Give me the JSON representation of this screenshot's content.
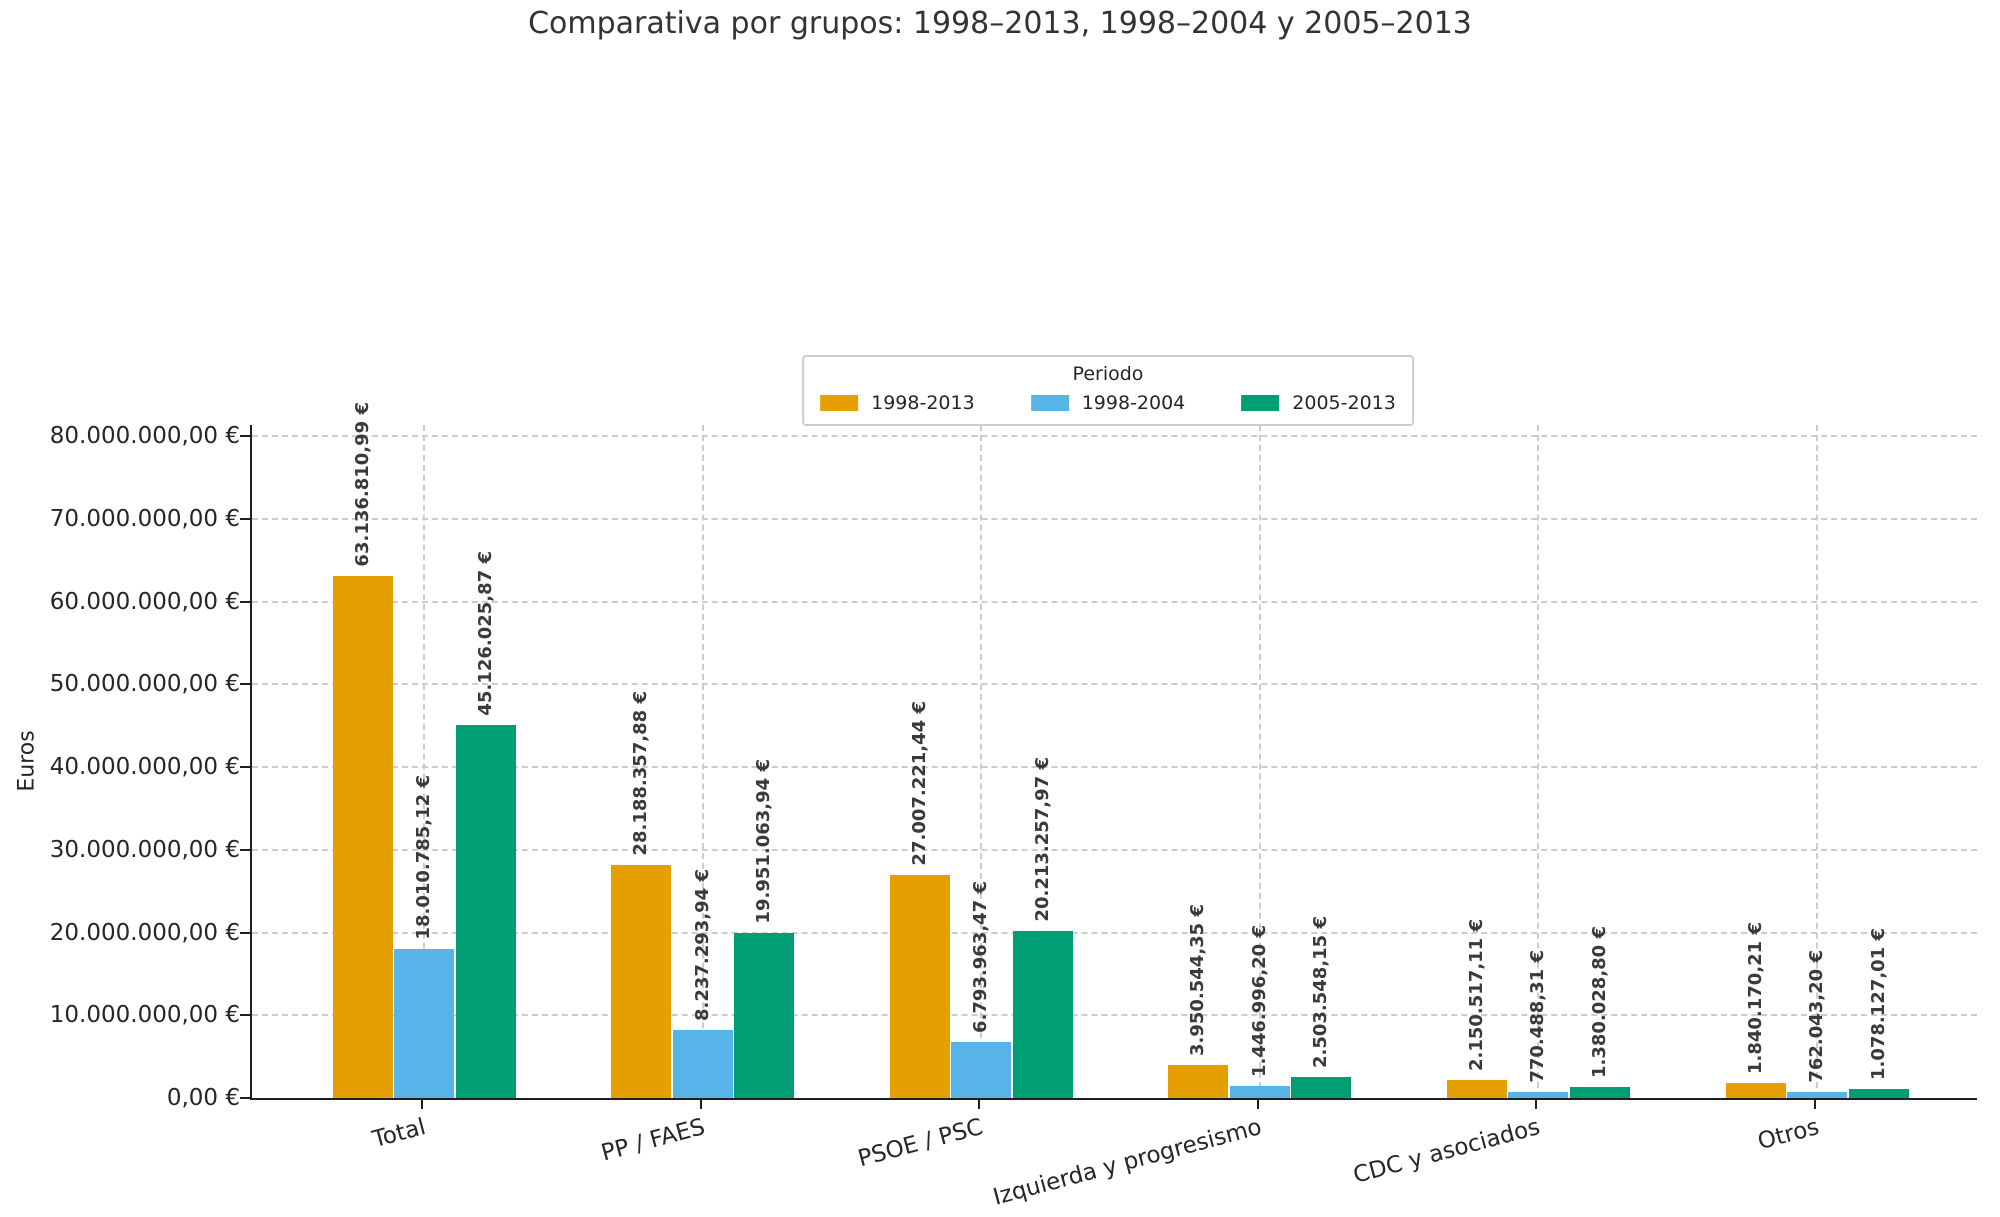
{
  "title": "Comparativa por grupos: 1998–2013, 1998–2004 y 2005–2013",
  "chart_data": {
    "type": "bar",
    "title": "Comparativa por grupos: 1998–2013, 1998–2004 y 2005–2013",
    "xlabel": "",
    "ylabel": "Euros",
    "ylim": [
      0,
      80000000
    ],
    "ytick_step": 10000000,
    "ytick_labels": [
      "0,00 €",
      "10.000.000,00 €",
      "20.000.000,00 €",
      "30.000.000,00 €",
      "40.000.000,00 €",
      "50.000.000,00 €",
      "60.000.000,00 €",
      "70.000.000,00 €",
      "80.000.000,00 €"
    ],
    "grid": true,
    "legend": {
      "title": "Periodo",
      "position": "upper center"
    },
    "categories": [
      "Total",
      "PP / FAES",
      "PSOE / PSC",
      "Izquierda y progresismo",
      "CDC y asociados",
      "Otros"
    ],
    "series": [
      {
        "name": "1998-2013",
        "color": "#E69F00",
        "values": [
          63136810.99,
          28188357.88,
          27007221.44,
          3950544.35,
          2150517.11,
          1840170.21
        ],
        "labels": [
          "63.136.810,99 €",
          "28.188.357,88 €",
          "27.007.221,44 €",
          "3.950.544,35 €",
          "2.150.517,11 €",
          "1.840.170,21 €"
        ]
      },
      {
        "name": "1998-2004",
        "color": "#56B4E9",
        "values": [
          18010785.12,
          8237293.94,
          6793963.47,
          1446996.2,
          770488.31,
          762043.2
        ],
        "labels": [
          "18.010.785,12 €",
          "8.237.293,94 €",
          "6.793.963,47 €",
          "1.446.996,20 €",
          "770.488,31 €",
          "762.043,20 €"
        ]
      },
      {
        "name": "2005-2013",
        "color": "#009E73",
        "values": [
          45126025.87,
          19951063.94,
          20213257.97,
          2503548.15,
          1380028.8,
          1078127.01
        ],
        "labels": [
          "45.126.025,87 €",
          "19.951.063,94 €",
          "20.213.257,97 €",
          "2.503.548,15 €",
          "1.380.028,80 €",
          "1.078.127,01 €"
        ]
      }
    ]
  }
}
